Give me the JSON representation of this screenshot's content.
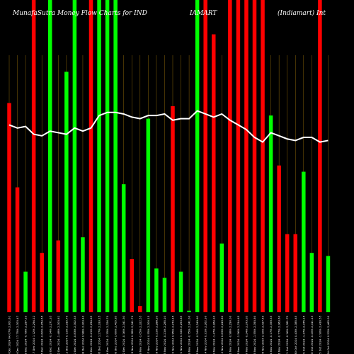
{
  "title": {
    "left": "MunafaSutra  Money Flow  Charts for IND",
    "middle": "IAMART",
    "right": "(Indiamart) Int"
  },
  "colors": {
    "background": "#000000",
    "up": "#00ff00",
    "down": "#ff0000",
    "line": "#ffffff",
    "grid": "#b8860b",
    "text": "#ffffff"
  },
  "chart_data": {
    "type": "bar",
    "title": "MunafaSutra  Money Flow  Charts for INDIAMART (Indiamart) Int",
    "ylim": [
      0,
      100
    ],
    "categories": [
      "Fri 20 Dec 2024 64.07% 2,001.61",
      "Thu 19 Dec 2024 17.75% 2,303.47",
      "Wed 18 Dec 2024 -0.79% 2,297.33",
      "Tue 17 Dec 2024 1.12% 2,294.12",
      "Mon 16 Dec 2024 -0.62% 2,254.55",
      "Fri 13 Dec 2024 -0.14% 2,271.35",
      "Thu 12 Dec 2024 -1.48% 2,303.61",
      "Wed 11 Dec 2024 0.11% 2,315.70",
      "Tue 10 Dec 2024 -0.83% 2,302.35",
      "Mon 09 Dec 2024 0.98% 2,303.40",
      "Fri 06 Dec 2024 -0.41% 2,294.65",
      "Thu 05 Dec 2024 1.27% 2,333.15",
      "Wed 04 Dec 2024 -2.35% 2,326.70",
      "Tue 03 Dec 2024 1.60% 2,405.95",
      "Mon 02 Dec 2024 -0.16% 2,341.30",
      "Fri 29 Nov 2024 0.38% 2,341.70",
      "Thu 28 Nov 2024 -1.05% 2,322.55",
      "Wed 27 Nov 2024 0.55% 2,300.15",
      "Tue 26 Nov 2024 0.21% 2,288.20",
      "Mon 25 Nov 2024 -0.21% 2,285.10",
      "Fri 22 Nov 2024 0.95% 2,274.45",
      "Thu 21 Nov 2024 0.34% 2,253.85",
      "Tue 19 Nov 2024 -0.75% 2,241.00",
      "Mon 18 Nov 2024 -0.24% 2,249.60",
      "Thu 14 Nov 2024 0.31% 2,262.30",
      "Wed 13 Nov 2024 -1.47% 2,264.30",
      "Tue 12 Nov 2024 0.63% 2,249.80",
      "Mon 11 Nov 2024 -0.98% 2,290.00",
      "Fri 08 Nov 2024 -1.56% 2,314.65",
      "Thu 07 Nov 2024 -0.24% 2,373.05",
      "Wed 06 Nov 2024 -1.55% 2,393.80",
      "Tue 05 Nov 2024 3.10% 2,427.50",
      "Mon 04 Nov 2024 -0.17% 2,359.55",
      "Fri 01 Nov 2024 -0.77% 2,363.60",
      "Thu 31 Oct 2024 -0.16% 2,381.75",
      "Wed 30 Oct 2024 0.43% 2,385.65",
      "Tue 29 Oct 2024 -1.47% 2,375.15",
      "Mon 28 Oct 2024 -0.20% 2,411.15",
      "Fri 25 Oct 2024 -1.90% 2,416.55",
      "Thu 24 Oct 2024 0.52% 2,465.00"
    ],
    "series": [
      {
        "values": [
          67,
          40,
          13,
          100,
          19,
          100,
          23,
          77,
          100,
          24,
          100,
          100,
          100,
          100,
          41,
          17,
          2,
          62,
          14,
          11,
          66,
          13,
          0.5,
          100,
          100,
          89,
          22,
          100,
          100,
          100,
          100,
          100,
          63,
          47,
          25,
          25,
          45,
          19,
          100,
          18
        ],
        "colors": [
          "red",
          "red",
          "green",
          "red",
          "red",
          "green",
          "red",
          "green",
          "green",
          "green",
          "red",
          "green",
          "green",
          "green",
          "green",
          "red",
          "red",
          "green",
          "green",
          "green",
          "red",
          "green",
          "green",
          "green",
          "red",
          "red",
          "green",
          "red",
          "red",
          "red",
          "red",
          "red",
          "green",
          "red",
          "red",
          "red",
          "green",
          "green",
          "red",
          "green"
        ]
      },
      {
        "values": [
          60,
          59,
          59.5,
          57,
          56.5,
          58,
          57.5,
          57,
          59,
          58,
          59,
          63,
          64,
          64,
          63.5,
          62.5,
          62,
          63,
          63,
          63.5,
          61.5,
          62,
          62,
          64.5,
          63.5,
          62.5,
          63.5,
          61.5,
          60,
          58.5,
          56,
          54.5,
          57.5,
          56.5,
          55.5,
          55,
          56,
          56,
          54.5,
          55
        ]
      }
    ],
    "xlabel": "",
    "ylabel": "",
    "grid": true
  }
}
